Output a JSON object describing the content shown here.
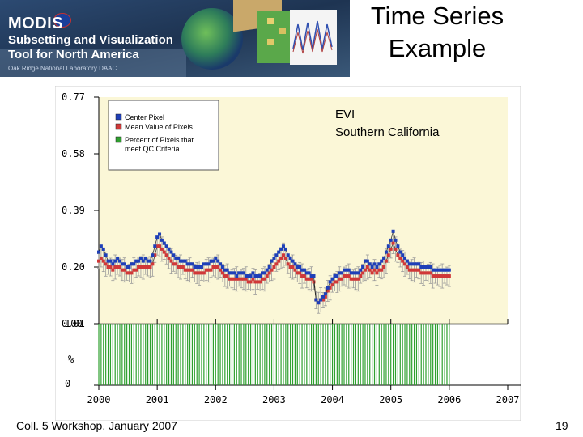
{
  "slide": {
    "title_line1": "Time Series",
    "title_line2": "Example",
    "footer": "Coll. 5 Workshop, January 2007",
    "page_number": "19"
  },
  "banner": {
    "word": "MODIS",
    "line1": "Subsetting and Visualization",
    "line2": "Tool for North America",
    "credit": "Oak Ridge National Laboratory DAAC"
  },
  "chart_data": {
    "type": "line",
    "title_lines": [
      "EVI",
      "Southern California"
    ],
    "y_ticks": [
      "0.77",
      "0.58",
      "0.39",
      "0.20",
      "0.01"
    ],
    "ylim": [
      0.01,
      0.77
    ],
    "x_ticks": [
      "2000",
      "2001",
      "2002",
      "2003",
      "2004",
      "2005",
      "2006",
      "2007"
    ],
    "xlim": [
      2000,
      2007
    ],
    "legend": [
      "Center Pixel",
      "Mean Value of Pixels",
      "Percent of Pixels that meet QC Criteria"
    ],
    "legend_placement": "top-left",
    "qc_axis": {
      "ticks": [
        "100",
        "%",
        "0"
      ],
      "range": [
        0,
        100
      ]
    },
    "colors": {
      "center": "#1e3fb8",
      "mean": "#d03838",
      "qc": "#2ea02e",
      "plot_bg": "#fbf7d7",
      "error_bar": "#9a9a9a"
    },
    "series": [
      {
        "name": "Center Pixel",
        "x": [
          2000.0,
          2000.04,
          2000.08,
          2000.12,
          2000.16,
          2000.2,
          2000.24,
          2000.28,
          2000.32,
          2000.36,
          2000.4,
          2000.44,
          2000.48,
          2000.52,
          2000.56,
          2000.6,
          2000.64,
          2000.68,
          2000.72,
          2000.76,
          2000.8,
          2000.84,
          2000.88,
          2000.92,
          2000.96,
          2001.0,
          2001.04,
          2001.08,
          2001.12,
          2001.16,
          2001.2,
          2001.24,
          2001.28,
          2001.32,
          2001.36,
          2001.4,
          2001.44,
          2001.48,
          2001.52,
          2001.56,
          2001.6,
          2001.64,
          2001.68,
          2001.72,
          2001.76,
          2001.8,
          2001.84,
          2001.88,
          2001.92,
          2001.96,
          2002.0,
          2002.04,
          2002.08,
          2002.12,
          2002.16,
          2002.2,
          2002.24,
          2002.28,
          2002.32,
          2002.36,
          2002.4,
          2002.44,
          2002.48,
          2002.52,
          2002.56,
          2002.6,
          2002.64,
          2002.68,
          2002.72,
          2002.76,
          2002.8,
          2002.84,
          2002.88,
          2002.92,
          2002.96,
          2003.0,
          2003.04,
          2003.08,
          2003.12,
          2003.16,
          2003.2,
          2003.24,
          2003.28,
          2003.32,
          2003.36,
          2003.4,
          2003.44,
          2003.48,
          2003.52,
          2003.56,
          2003.6,
          2003.64,
          2003.68,
          2003.72,
          2003.76,
          2003.8,
          2003.84,
          2003.88,
          2003.92,
          2003.96,
          2004.0,
          2004.04,
          2004.08,
          2004.12,
          2004.16,
          2004.2,
          2004.24,
          2004.28,
          2004.32,
          2004.36,
          2004.4,
          2004.44,
          2004.48,
          2004.52,
          2004.56,
          2004.6,
          2004.64,
          2004.68,
          2004.72,
          2004.76,
          2004.8,
          2004.84,
          2004.88,
          2004.92,
          2004.96,
          2005.0,
          2005.04,
          2005.08,
          2005.12,
          2005.16,
          2005.2,
          2005.24,
          2005.28,
          2005.32,
          2005.36,
          2005.4,
          2005.44,
          2005.48,
          2005.52,
          2005.56,
          2005.6,
          2005.64,
          2005.68,
          2005.72,
          2005.76,
          2005.8,
          2005.84,
          2005.88,
          2005.92,
          2005.96,
          2006.0
        ],
        "y": [
          0.25,
          0.27,
          0.26,
          0.24,
          0.22,
          0.22,
          0.21,
          0.22,
          0.23,
          0.22,
          0.21,
          0.21,
          0.2,
          0.2,
          0.21,
          0.21,
          0.22,
          0.22,
          0.23,
          0.22,
          0.23,
          0.22,
          0.22,
          0.24,
          0.27,
          0.3,
          0.31,
          0.29,
          0.28,
          0.27,
          0.26,
          0.25,
          0.24,
          0.23,
          0.23,
          0.22,
          0.22,
          0.22,
          0.21,
          0.21,
          0.21,
          0.2,
          0.2,
          0.2,
          0.2,
          0.21,
          0.21,
          0.21,
          0.22,
          0.22,
          0.23,
          0.22,
          0.21,
          0.2,
          0.19,
          0.19,
          0.18,
          0.18,
          0.18,
          0.17,
          0.18,
          0.18,
          0.18,
          0.17,
          0.17,
          0.17,
          0.18,
          0.17,
          0.17,
          0.17,
          0.18,
          0.18,
          0.19,
          0.2,
          0.22,
          0.23,
          0.24,
          0.25,
          0.26,
          0.27,
          0.26,
          0.24,
          0.23,
          0.22,
          0.21,
          0.2,
          0.2,
          0.19,
          0.19,
          0.18,
          0.18,
          0.17,
          0.17,
          0.09,
          0.08,
          0.09,
          0.1,
          0.11,
          0.13,
          0.15,
          0.16,
          0.17,
          0.17,
          0.18,
          0.18,
          0.19,
          0.19,
          0.19,
          0.18,
          0.18,
          0.18,
          0.18,
          0.19,
          0.2,
          0.22,
          0.22,
          0.21,
          0.2,
          0.21,
          0.2,
          0.21,
          0.22,
          0.23,
          0.25,
          0.27,
          0.29,
          0.32,
          0.29,
          0.27,
          0.25,
          0.24,
          0.23,
          0.22,
          0.21,
          0.21,
          0.21,
          0.21,
          0.21,
          0.2,
          0.2,
          0.2,
          0.2,
          0.2,
          0.19,
          0.19,
          0.19,
          0.19,
          0.19,
          0.19,
          0.19,
          0.19
        ]
      },
      {
        "name": "Mean Value of Pixels",
        "x": [
          2000.0,
          2000.04,
          2000.08,
          2000.12,
          2000.16,
          2000.2,
          2000.24,
          2000.28,
          2000.32,
          2000.36,
          2000.4,
          2000.44,
          2000.48,
          2000.52,
          2000.56,
          2000.6,
          2000.64,
          2000.68,
          2000.72,
          2000.76,
          2000.8,
          2000.84,
          2000.88,
          2000.92,
          2000.96,
          2001.0,
          2001.04,
          2001.08,
          2001.12,
          2001.16,
          2001.2,
          2001.24,
          2001.28,
          2001.32,
          2001.36,
          2001.4,
          2001.44,
          2001.48,
          2001.52,
          2001.56,
          2001.6,
          2001.64,
          2001.68,
          2001.72,
          2001.76,
          2001.8,
          2001.84,
          2001.88,
          2001.92,
          2001.96,
          2002.0,
          2002.04,
          2002.08,
          2002.12,
          2002.16,
          2002.2,
          2002.24,
          2002.28,
          2002.32,
          2002.36,
          2002.4,
          2002.44,
          2002.48,
          2002.52,
          2002.56,
          2002.6,
          2002.64,
          2002.68,
          2002.72,
          2002.76,
          2002.8,
          2002.84,
          2002.88,
          2002.92,
          2002.96,
          2003.0,
          2003.04,
          2003.08,
          2003.12,
          2003.16,
          2003.2,
          2003.24,
          2003.28,
          2003.32,
          2003.36,
          2003.4,
          2003.44,
          2003.48,
          2003.52,
          2003.56,
          2003.6,
          2003.64,
          2003.68,
          2003.72,
          2003.76,
          2003.8,
          2003.84,
          2003.88,
          2003.92,
          2003.96,
          2004.0,
          2004.04,
          2004.08,
          2004.12,
          2004.16,
          2004.2,
          2004.24,
          2004.28,
          2004.32,
          2004.36,
          2004.4,
          2004.44,
          2004.48,
          2004.52,
          2004.56,
          2004.6,
          2004.64,
          2004.68,
          2004.72,
          2004.76,
          2004.8,
          2004.84,
          2004.88,
          2004.92,
          2004.96,
          2005.0,
          2005.04,
          2005.08,
          2005.12,
          2005.16,
          2005.2,
          2005.24,
          2005.28,
          2005.32,
          2005.36,
          2005.4,
          2005.44,
          2005.48,
          2005.52,
          2005.56,
          2005.6,
          2005.64,
          2005.68,
          2005.72,
          2005.76,
          2005.8,
          2005.84,
          2005.88,
          2005.92,
          2005.96,
          2006.0
        ],
        "y": [
          0.22,
          0.23,
          0.22,
          0.21,
          0.2,
          0.2,
          0.19,
          0.2,
          0.2,
          0.2,
          0.19,
          0.19,
          0.18,
          0.18,
          0.18,
          0.19,
          0.19,
          0.2,
          0.2,
          0.2,
          0.2,
          0.2,
          0.2,
          0.21,
          0.24,
          0.27,
          0.27,
          0.26,
          0.25,
          0.24,
          0.23,
          0.22,
          0.21,
          0.21,
          0.2,
          0.2,
          0.2,
          0.19,
          0.19,
          0.19,
          0.19,
          0.18,
          0.18,
          0.18,
          0.18,
          0.18,
          0.19,
          0.19,
          0.19,
          0.2,
          0.2,
          0.2,
          0.19,
          0.18,
          0.17,
          0.17,
          0.16,
          0.16,
          0.16,
          0.16,
          0.16,
          0.16,
          0.16,
          0.16,
          0.15,
          0.15,
          0.16,
          0.15,
          0.15,
          0.15,
          0.16,
          0.16,
          0.17,
          0.18,
          0.19,
          0.2,
          0.21,
          0.22,
          0.23,
          0.24,
          0.23,
          0.21,
          0.2,
          0.2,
          0.19,
          0.18,
          0.18,
          0.17,
          0.17,
          0.16,
          0.16,
          0.16,
          0.15,
          0.09,
          0.08,
          0.09,
          0.09,
          0.1,
          0.12,
          0.13,
          0.14,
          0.15,
          0.15,
          0.16,
          0.16,
          0.17,
          0.17,
          0.17,
          0.16,
          0.16,
          0.16,
          0.16,
          0.17,
          0.18,
          0.19,
          0.2,
          0.19,
          0.18,
          0.19,
          0.18,
          0.19,
          0.19,
          0.2,
          0.22,
          0.24,
          0.26,
          0.28,
          0.26,
          0.24,
          0.23,
          0.22,
          0.21,
          0.2,
          0.19,
          0.19,
          0.19,
          0.19,
          0.19,
          0.18,
          0.18,
          0.18,
          0.18,
          0.18,
          0.17,
          0.17,
          0.17,
          0.17,
          0.17,
          0.17,
          0.17,
          0.17
        ]
      },
      {
        "name": "Percent of Pixels that meet QC Criteria",
        "x": [
          2000.0,
          2000.04,
          2000.08,
          2000.12,
          2000.16,
          2000.2,
          2000.24,
          2000.28,
          2000.32,
          2000.36,
          2000.4,
          2000.44,
          2000.48,
          2000.52,
          2000.56,
          2000.6,
          2000.64,
          2000.68,
          2000.72,
          2000.76,
          2000.8,
          2000.84,
          2000.88,
          2000.92,
          2000.96,
          2001.0,
          2001.04,
          2001.08,
          2001.12,
          2001.16,
          2001.2,
          2001.24,
          2001.28,
          2001.32,
          2001.36,
          2001.4,
          2001.44,
          2001.48,
          2001.52,
          2001.56,
          2001.6,
          2001.64,
          2001.68,
          2001.72,
          2001.76,
          2001.8,
          2001.84,
          2001.88,
          2001.92,
          2001.96,
          2002.0,
          2002.04,
          2002.08,
          2002.12,
          2002.16,
          2002.2,
          2002.24,
          2002.28,
          2002.32,
          2002.36,
          2002.4,
          2002.44,
          2002.48,
          2002.52,
          2002.56,
          2002.6,
          2002.64,
          2002.68,
          2002.72,
          2002.76,
          2002.8,
          2002.84,
          2002.88,
          2002.92,
          2002.96,
          2003.0,
          2003.04,
          2003.08,
          2003.12,
          2003.16,
          2003.2,
          2003.24,
          2003.28,
          2003.32,
          2003.36,
          2003.4,
          2003.44,
          2003.48,
          2003.52,
          2003.56,
          2003.6,
          2003.64,
          2003.68,
          2003.72,
          2003.76,
          2003.8,
          2003.84,
          2003.88,
          2003.92,
          2003.96,
          2004.0,
          2004.04,
          2004.08,
          2004.12,
          2004.16,
          2004.2,
          2004.24,
          2004.28,
          2004.32,
          2004.36,
          2004.4,
          2004.44,
          2004.48,
          2004.52,
          2004.56,
          2004.6,
          2004.64,
          2004.68,
          2004.72,
          2004.76,
          2004.8,
          2004.84,
          2004.88,
          2004.92,
          2004.96,
          2005.0,
          2005.04,
          2005.08,
          2005.12,
          2005.16,
          2005.2,
          2005.24,
          2005.28,
          2005.32,
          2005.36,
          2005.4,
          2005.44,
          2005.48,
          2005.52,
          2005.56,
          2005.6,
          2005.64,
          2005.68,
          2005.72,
          2005.76,
          2005.8,
          2005.84,
          2005.88,
          2005.92,
          2005.96,
          2006.0
        ],
        "y": [
          100,
          100,
          100,
          100,
          100,
          100,
          100,
          100,
          100,
          100,
          100,
          100,
          100,
          100,
          100,
          100,
          100,
          100,
          100,
          100,
          100,
          100,
          100,
          100,
          100,
          100,
          100,
          100,
          100,
          100,
          100,
          100,
          100,
          100,
          100,
          100,
          100,
          100,
          100,
          100,
          100,
          100,
          100,
          100,
          100,
          100,
          100,
          100,
          100,
          100,
          100,
          100,
          100,
          100,
          100,
          100,
          100,
          100,
          100,
          100,
          100,
          100,
          100,
          100,
          100,
          100,
          100,
          100,
          100,
          100,
          100,
          100,
          100,
          100,
          100,
          100,
          100,
          100,
          100,
          100,
          100,
          100,
          100,
          100,
          100,
          100,
          100,
          100,
          100,
          100,
          100,
          100,
          100,
          100,
          100,
          100,
          100,
          100,
          100,
          100,
          100,
          100,
          100,
          100,
          100,
          100,
          100,
          100,
          100,
          100,
          100,
          100,
          100,
          100,
          100,
          100,
          100,
          100,
          100,
          100,
          100,
          100,
          100,
          100,
          100,
          100,
          100,
          100,
          100,
          100,
          100,
          100,
          100,
          100,
          100,
          100,
          100,
          100,
          100,
          100,
          100,
          100,
          100,
          100,
          100,
          100,
          100,
          100,
          100,
          100,
          100
        ]
      }
    ]
  }
}
